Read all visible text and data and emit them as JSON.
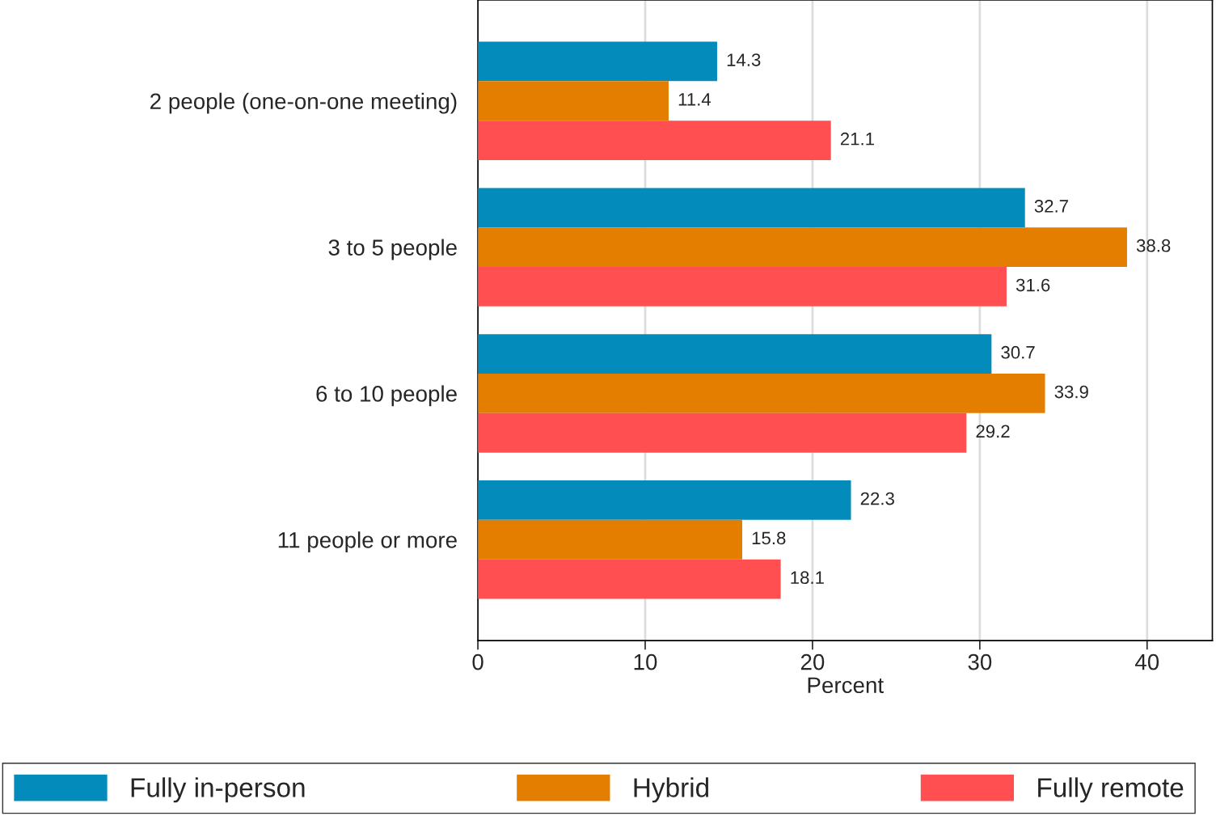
{
  "chart_data": {
    "type": "bar",
    "orientation": "horizontal",
    "xlabel": "Percent",
    "categories": [
      "2 people (one-on-one meeting)",
      "3 to 5 people",
      "6 to 10 people",
      "11 people or more"
    ],
    "series": [
      {
        "name": "Fully in-person",
        "color": "#038bbb",
        "values": [
          14.3,
          32.7,
          30.7,
          22.3
        ]
      },
      {
        "name": "Hybrid",
        "color": "#e37e00",
        "values": [
          11.4,
          38.8,
          33.9,
          15.8
        ]
      },
      {
        "name": "Fully remote",
        "color": "#ff4f50",
        "values": [
          21.1,
          31.6,
          29.2,
          18.1
        ]
      }
    ],
    "xlim": [
      0,
      43.9
    ],
    "xticks": [
      0,
      10,
      20,
      30,
      40
    ],
    "grid": "x",
    "legend": "bottom",
    "data_labels": true
  }
}
